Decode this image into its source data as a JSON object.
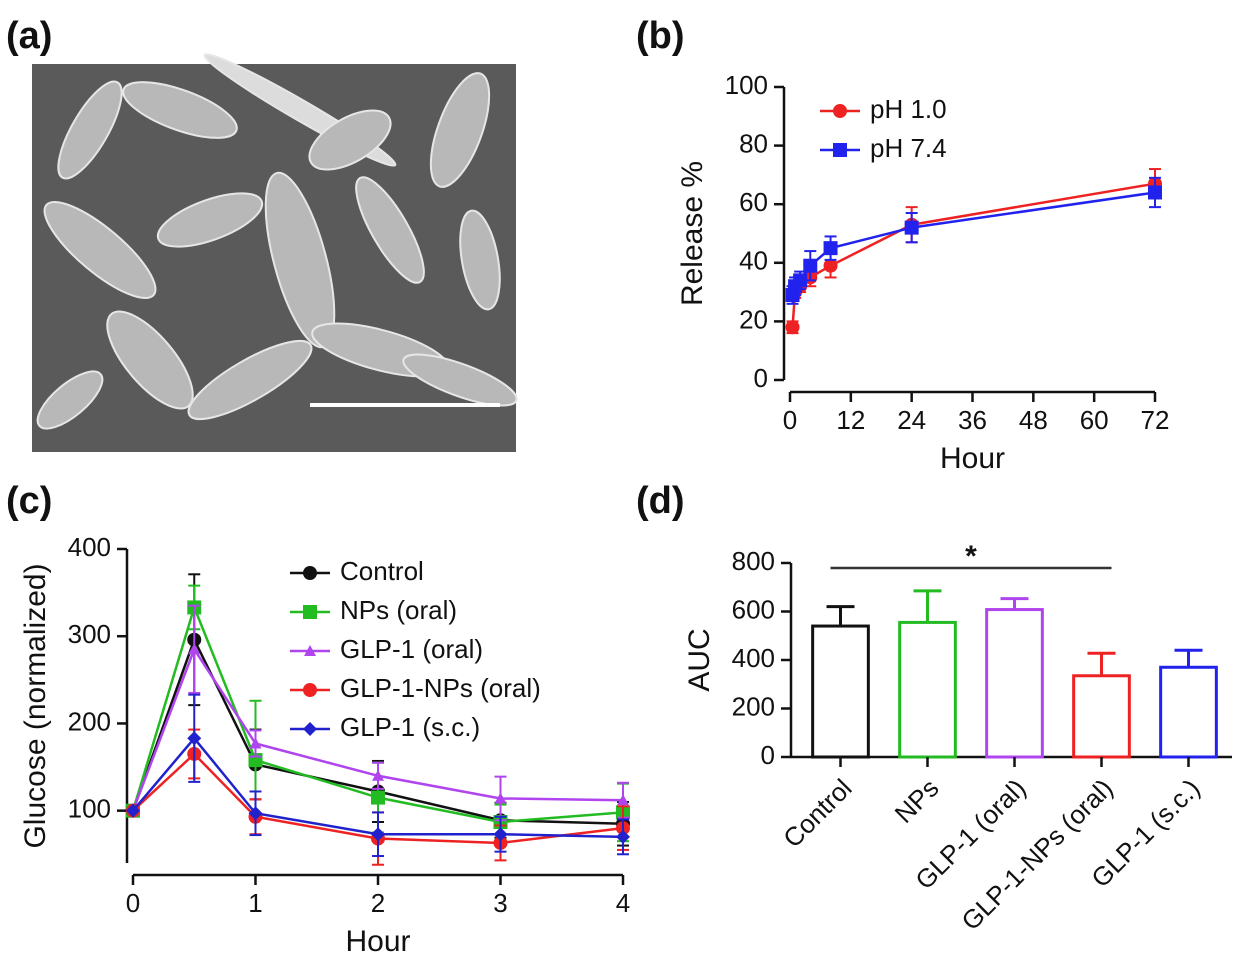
{
  "chart_data": [
    {
      "type": "image",
      "label": "(a)"
    },
    {
      "type": "line",
      "label": "(b)",
      "xlabel": "Hour",
      "ylabel": "Release %",
      "xlim": [
        0,
        72
      ],
      "xticks": [
        0,
        12,
        24,
        36,
        48,
        60,
        72
      ],
      "ylim": [
        0,
        100
      ],
      "yticks": [
        0,
        20,
        40,
        60,
        80,
        100
      ],
      "legend": "upper left",
      "x": [
        0.5,
        1,
        2,
        4,
        8,
        24,
        72
      ],
      "series": [
        {
          "name": "pH 1.0",
          "color": "#ee2222",
          "marker": "circle",
          "values": [
            18,
            30,
            32,
            35,
            39,
            53,
            67
          ],
          "errors": [
            2,
            2,
            2,
            3,
            4,
            6,
            5
          ]
        },
        {
          "name": "pH 7.4",
          "color": "#2222ee",
          "marker": "square",
          "values": [
            29,
            32,
            34,
            39,
            45,
            52,
            64
          ],
          "errors": [
            3,
            3,
            3,
            5,
            4,
            5,
            5
          ]
        }
      ]
    },
    {
      "type": "line",
      "label": "(c)",
      "xlabel": "Hour",
      "ylabel": "Glucose (normalized)",
      "xlim": [
        0,
        4
      ],
      "xticks": [
        0,
        1,
        2,
        3,
        4
      ],
      "ylim": [
        40,
        400
      ],
      "yticks": [
        100,
        200,
        300,
        400
      ],
      "legend": "upper right",
      "x": [
        0,
        0.5,
        1,
        2,
        3,
        4
      ],
      "series": [
        {
          "name": "Control",
          "color": "#111111",
          "marker": "circle",
          "values": [
            100,
            296,
            153,
            122,
            89,
            85
          ],
          "errors": [
            0,
            75,
            40,
            35,
            20,
            25
          ]
        },
        {
          "name": "NPs (oral)",
          "color": "#22bb22",
          "marker": "square",
          "values": [
            100,
            333,
            158,
            115,
            87,
            98
          ],
          "errors": [
            0,
            25,
            68,
            40,
            20,
            33
          ]
        },
        {
          "name": "GLP-1 (oral)",
          "color": "#b044ee",
          "marker": "triangle",
          "values": [
            100,
            285,
            177,
            140,
            114,
            112
          ],
          "errors": [
            0,
            50,
            15,
            15,
            25,
            20
          ]
        },
        {
          "name": "GLP-1-NPs (oral)",
          "color": "#ee2222",
          "marker": "circle",
          "values": [
            100,
            165,
            93,
            68,
            63,
            80
          ],
          "errors": [
            0,
            28,
            20,
            30,
            20,
            25
          ]
        },
        {
          "name": "GLP-1 (s.c.)",
          "color": "#2222cc",
          "marker": "diamond",
          "values": [
            100,
            183,
            97,
            73,
            73,
            70
          ],
          "errors": [
            0,
            50,
            25,
            25,
            20,
            20
          ]
        }
      ]
    },
    {
      "type": "bar",
      "label": "(d)",
      "ylabel": "AUC",
      "ylim": [
        0,
        800
      ],
      "yticks": [
        0,
        200,
        400,
        600,
        800
      ],
      "categories": [
        "Control",
        "NPs",
        "GLP-1 (oral)",
        "GLP-1-NPs (oral)",
        "GLP-1 (s.c.)"
      ],
      "values": [
        540,
        555,
        608,
        335,
        370
      ],
      "errors": [
        80,
        130,
        45,
        93,
        70
      ],
      "colors": [
        "#111111",
        "#22bb22",
        "#b044ee",
        "#ee2222",
        "#2222ee"
      ],
      "significance": {
        "label": "*",
        "between": [
          "Control",
          "GLP-1-NPs (oral)"
        ]
      }
    }
  ]
}
